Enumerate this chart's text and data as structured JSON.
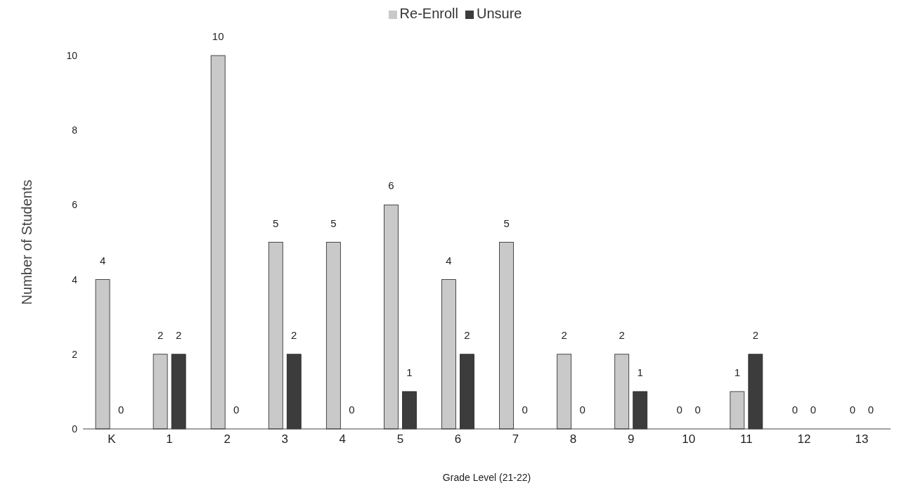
{
  "chart_data": {
    "type": "bar",
    "xlabel": "Grade Level (21-22)",
    "ylabel": "Number of Students",
    "categories": [
      "K",
      "1",
      "2",
      "3",
      "4",
      "5",
      "6",
      "7",
      "8",
      "9",
      "10",
      "11",
      "12",
      "13"
    ],
    "series": [
      {
        "name": "Re-Enroll",
        "color": "#c9c9c9",
        "values": [
          4,
          2,
          10,
          5,
          5,
          6,
          4,
          5,
          2,
          2,
          0,
          1,
          0,
          0
        ]
      },
      {
        "name": "Unsure",
        "color": "#3c3c3c",
        "values": [
          0,
          2,
          0,
          2,
          0,
          1,
          2,
          0,
          0,
          1,
          0,
          2,
          0,
          0
        ]
      }
    ],
    "ylim": [
      0,
      10
    ],
    "yticks": [
      0,
      2,
      4,
      6,
      8,
      10
    ],
    "grid": false,
    "legend": "top",
    "data_labels": true
  }
}
